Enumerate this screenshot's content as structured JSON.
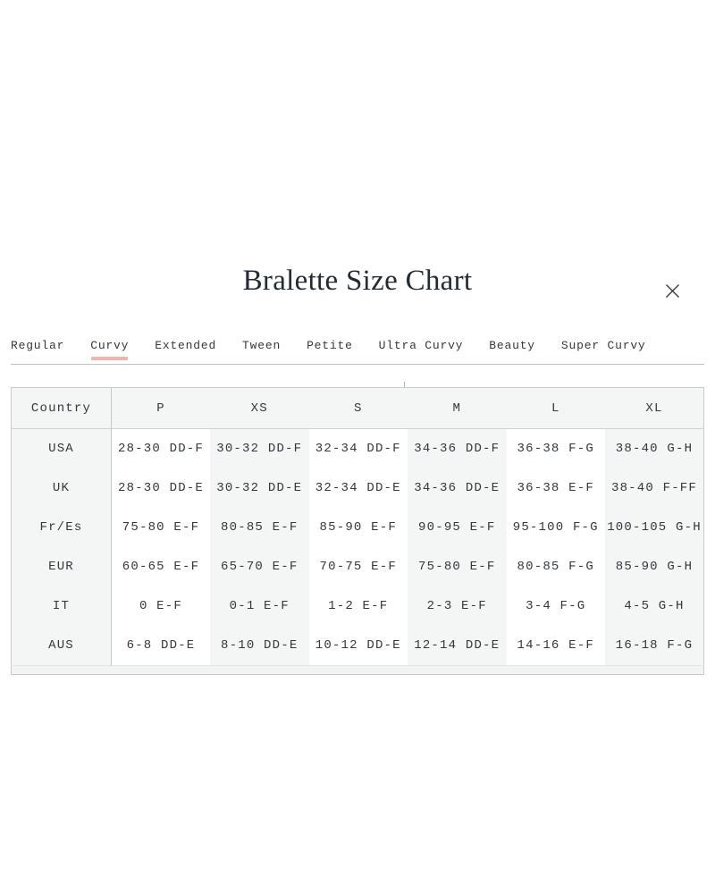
{
  "modal": {
    "title": "Bralette Size Chart"
  },
  "icons": {
    "close": "x-mark"
  },
  "tabs": {
    "items": [
      {
        "label": "Regular",
        "active": false
      },
      {
        "label": "Curvy",
        "active": true
      },
      {
        "label": "Extended",
        "active": false
      },
      {
        "label": "Tween",
        "active": false
      },
      {
        "label": "Petite",
        "active": false
      },
      {
        "label": "Ultra Curvy",
        "active": false
      },
      {
        "label": "Beauty",
        "active": false
      },
      {
        "label": "Super Curvy",
        "active": false
      }
    ]
  },
  "size_chart": {
    "type": "table",
    "columns": [
      "Country",
      "P",
      "XS",
      "S",
      "M",
      "L",
      "XL"
    ],
    "rows": [
      {
        "country": "USA",
        "values": [
          "28-30 DD-F",
          "30-32 DD-F",
          "32-34 DD-F",
          "34-36 DD-F",
          "36-38 F-G",
          "38-40 G-H"
        ]
      },
      {
        "country": "UK",
        "values": [
          "28-30 DD-E",
          "30-32 DD-E",
          "32-34 DD-E",
          "34-36 DD-E",
          "36-38 E-F",
          "38-40 F-FF"
        ]
      },
      {
        "country": "Fr/Es",
        "values": [
          "75-80 E-F",
          "80-85 E-F",
          "85-90 E-F",
          "90-95 E-F",
          "95-100 F-G",
          "100-105 G-H"
        ]
      },
      {
        "country": "EUR",
        "values": [
          "60-65 E-F",
          "65-70 E-F",
          "70-75 E-F",
          "75-80 E-F",
          "80-85 F-G",
          "85-90 G-H"
        ]
      },
      {
        "country": "IT",
        "values": [
          "0 E-F",
          "0-1 E-F",
          "1-2 E-F",
          "2-3 E-F",
          "3-4 F-G",
          "4-5 G-H"
        ]
      },
      {
        "country": "AUS",
        "values": [
          "6-8 DD-E",
          "8-10 DD-E",
          "10-12 DD-E",
          "12-14 DD-E",
          "14-16 E-F",
          "16-18 F-G"
        ]
      }
    ]
  },
  "colors": {
    "accent_underline": "#f0b4aa",
    "stripe": "#f4f5f5",
    "border": "#c9cbcb",
    "text": "#33383d",
    "title": "#232c35"
  }
}
